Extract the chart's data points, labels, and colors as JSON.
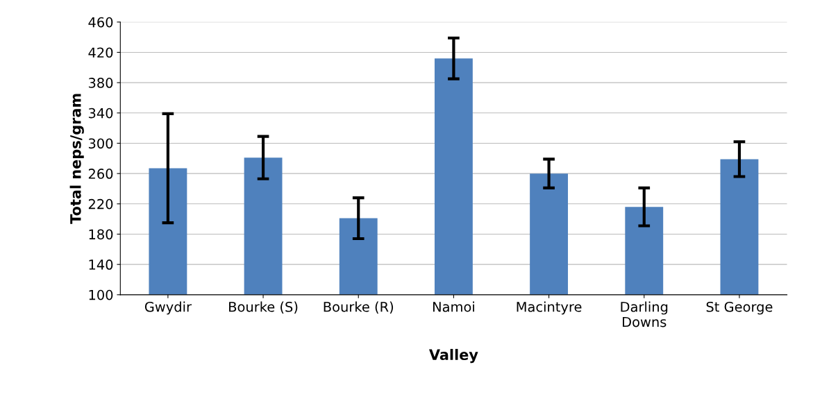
{
  "chart_data": {
    "type": "bar",
    "categories": [
      "Gwydir",
      "Bourke (S)",
      "Bourke (R)",
      "Namoi",
      "Macintyre",
      "Darling\nDowns",
      "St George"
    ],
    "values": [
      267,
      281,
      201,
      412,
      260,
      216,
      279
    ],
    "errors": [
      72,
      28,
      27,
      27,
      19,
      25,
      23
    ],
    "color": "#4f81bd",
    "xlabel": "Valley",
    "ylabel": "Total neps/gram",
    "ylim": [
      100,
      460
    ],
    "yticks": [
      100,
      140,
      180,
      220,
      260,
      300,
      340,
      380,
      420,
      460
    ],
    "grid": "y",
    "legend": false
  }
}
